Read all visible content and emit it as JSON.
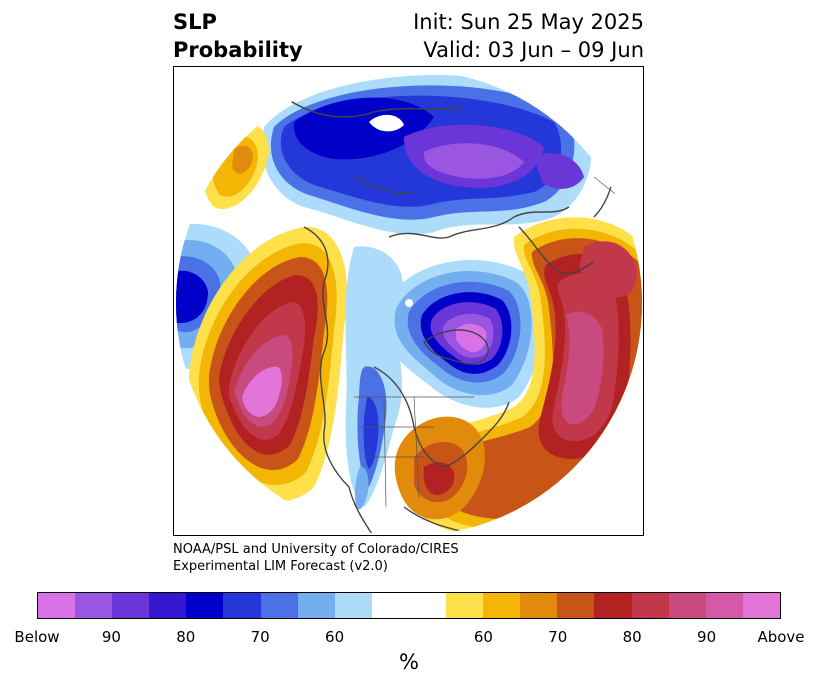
{
  "title": {
    "left_line1": "SLP",
    "left_line2": "Probability",
    "right_line1": "Init: Sun 25 May 2025",
    "right_line2": "Valid: 03 Jun – 09 Jun"
  },
  "credit": {
    "line1": "NOAA/PSL and University of Colorado/CIRES",
    "line2": "Experimental LIM Forecast (v2.0)"
  },
  "colorbar": {
    "unit": "%",
    "colors": [
      "#d872e6",
      "#9a56e0",
      "#6a36d8",
      "#3418d0",
      "#0000c8",
      "#2437d9",
      "#4a72e6",
      "#72aef0",
      "#acdcfa",
      "#ffffff",
      "#ffffff",
      "#fee04a",
      "#f4b604",
      "#e28a0c",
      "#c85418",
      "#b22222",
      "#c0384a",
      "#c84a7e",
      "#d45aa8",
      "#e274da"
    ],
    "ticks": [
      "Below",
      "90",
      "80",
      "70",
      "60",
      "60",
      "70",
      "80",
      "90",
      "Above"
    ]
  },
  "palette": {
    "below_strong": "#d872e6",
    "below_mid": "#6a36d8",
    "below_deep": "#0000c8",
    "below_light": "#72aef0",
    "below_faint": "#acdcfa",
    "above_faint": "#fee04a",
    "above_light": "#f4b604",
    "above_mid": "#c85418",
    "above_deep": "#b22222",
    "above_strong": "#e274da",
    "coast": "#444444"
  }
}
